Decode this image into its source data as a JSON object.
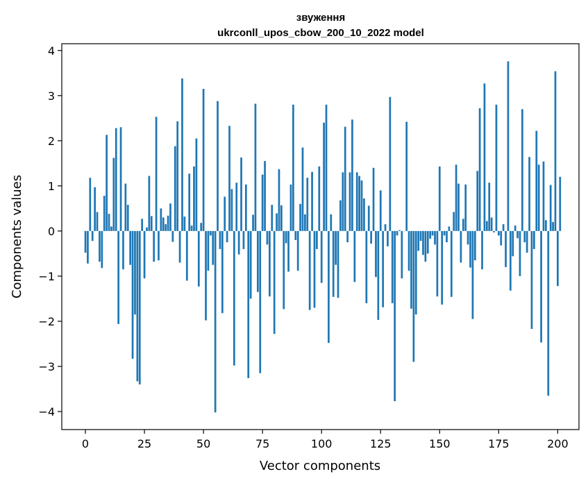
{
  "chart_data": {
    "type": "bar",
    "title_line1": "звуження",
    "title_line2": "ukrconll_upos_cbow_200_10_2022 model",
    "xlabel": "Vector components",
    "ylabel": "Components values",
    "xlim": [
      -10,
      209
    ],
    "ylim": [
      -4.4,
      4.15
    ],
    "xticks": [
      0,
      25,
      50,
      75,
      100,
      125,
      150,
      175,
      200
    ],
    "xtick_labels": [
      "0",
      "25",
      "50",
      "75",
      "100",
      "125",
      "150",
      "175",
      "200"
    ],
    "yticks": [
      -4,
      -3,
      -2,
      -1,
      0,
      1,
      2,
      3,
      4
    ],
    "ytick_labels": [
      "−4",
      "−3",
      "−2",
      "−1",
      "0",
      "1",
      "2",
      "3",
      "4"
    ],
    "bar_color": "#1f77b4",
    "values": [
      -0.48,
      -0.72,
      1.18,
      -0.22,
      0.97,
      0.42,
      -0.68,
      -0.82,
      0.78,
      2.13,
      0.38,
      0.1,
      1.62,
      2.28,
      -2.06,
      2.3,
      -0.85,
      1.05,
      0.58,
      -0.75,
      -2.83,
      -1.85,
      -3.33,
      -3.4,
      0.27,
      -1.05,
      0.08,
      1.22,
      0.33,
      -0.68,
      2.53,
      -0.65,
      0.5,
      0.3,
      0.15,
      0.34,
      0.61,
      -0.24,
      1.88,
      2.43,
      -0.7,
      3.38,
      0.32,
      -1.1,
      1.27,
      0.12,
      1.43,
      2.05,
      -1.23,
      0.18,
      3.15,
      -1.98,
      -0.88,
      -0.1,
      -0.75,
      -4.02,
      2.88,
      -0.4,
      -1.82,
      0.76,
      -0.25,
      2.33,
      0.93,
      -2.98,
      1.07,
      -0.52,
      1.63,
      -0.4,
      1.03,
      -3.26,
      -1.5,
      0.36,
      2.82,
      -1.35,
      -3.15,
      1.25,
      1.55,
      -0.3,
      -1.45,
      0.58,
      -2.28,
      0.39,
      1.37,
      0.57,
      -1.73,
      -0.27,
      -0.9,
      1.03,
      2.8,
      -0.2,
      -0.88,
      0.6,
      1.85,
      0.37,
      1.18,
      -1.75,
      1.31,
      -1.7,
      -0.4,
      1.43,
      -1.15,
      2.4,
      2.8,
      -2.48,
      0.37,
      -1.46,
      -0.75,
      -1.48,
      0.68,
      1.3,
      2.31,
      -0.25,
      1.3,
      2.47,
      -1.13,
      1.3,
      1.22,
      1.12,
      0.72,
      -1.6,
      0.56,
      -0.28,
      1.4,
      -1.02,
      -1.97,
      0.9,
      -1.69,
      0.15,
      -0.34,
      2.97,
      -1.6,
      -3.77,
      -0.1,
      0.02,
      -1.05,
      0.0,
      2.42,
      -0.88,
      -1.72,
      -2.9,
      -1.85,
      -0.44,
      -0.22,
      -0.53,
      -0.68,
      -0.5,
      -0.17,
      -0.1,
      -0.3,
      -1.45,
      1.43,
      -1.63,
      -0.1,
      -0.25,
      0.1,
      -1.46,
      0.42,
      1.47,
      1.05,
      -0.7,
      0.27,
      1.03,
      -0.3,
      -0.81,
      -1.95,
      -0.65,
      1.33,
      2.72,
      -0.85,
      3.27,
      0.22,
      1.07,
      0.3,
      -0.03,
      2.8,
      -0.1,
      -0.32,
      0.15,
      -0.8,
      3.76,
      -1.32,
      -0.56,
      0.12,
      -0.16,
      -1.0,
      2.7,
      -0.25,
      -0.48,
      1.64,
      -2.17,
      -0.4,
      2.22,
      1.47,
      -2.47,
      1.54,
      0.24,
      -3.65,
      1.02,
      0.2,
      3.54,
      -1.22,
      1.2
    ]
  }
}
